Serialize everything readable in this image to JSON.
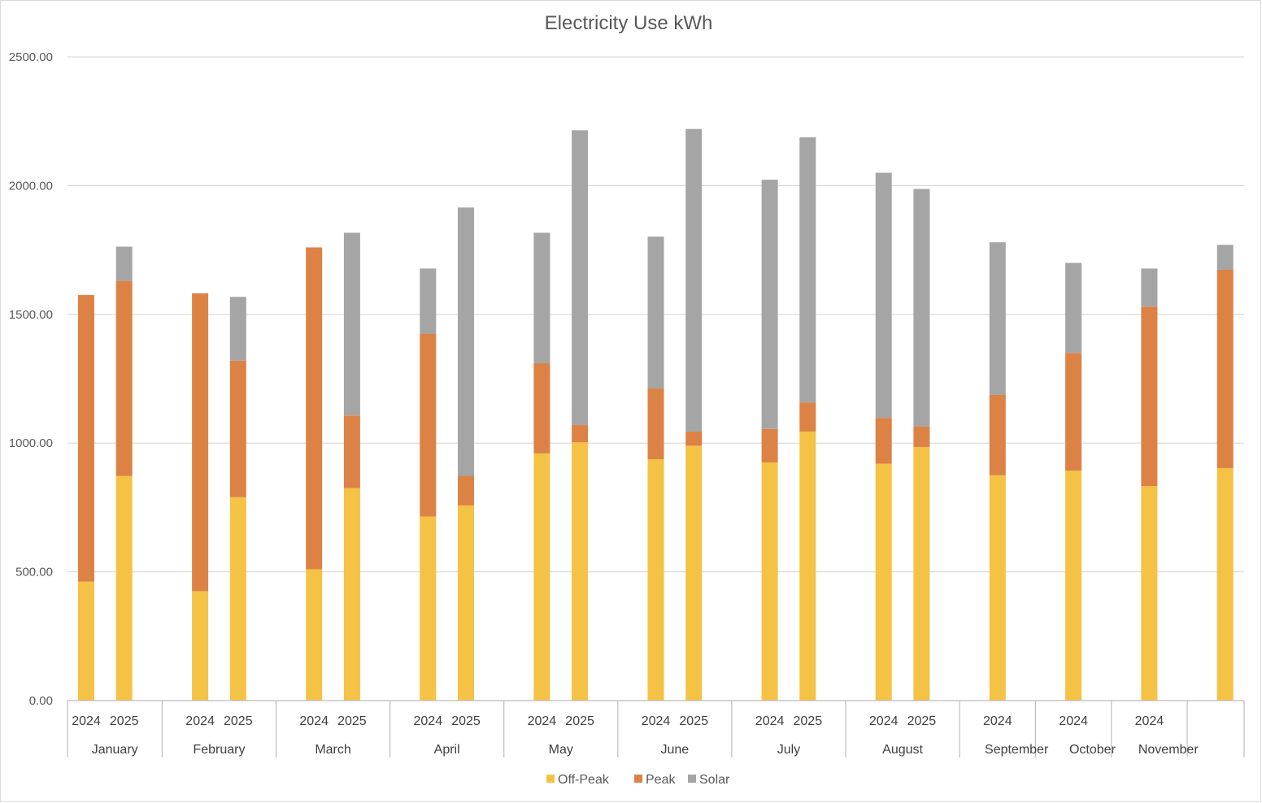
{
  "chart_data": {
    "type": "bar",
    "stacked": true,
    "title": "Electricity Use kWh",
    "xlabel": "",
    "ylabel": "",
    "ylim": [
      0,
      2500
    ],
    "y_ticks": [
      "0.00",
      "500.00",
      "1000.00",
      "1500.00",
      "2000.00",
      "2500.00"
    ],
    "grid": true,
    "legend_position": "bottom",
    "groups": [
      "January",
      "February",
      "March",
      "April",
      "May",
      "June",
      "July",
      "August",
      "September",
      "October",
      "November",
      ""
    ],
    "categories": [
      {
        "group": "January",
        "label": "2024"
      },
      {
        "group": "January",
        "label": "2025"
      },
      {
        "group": "February",
        "label": "2024"
      },
      {
        "group": "February",
        "label": "2025"
      },
      {
        "group": "March",
        "label": "2024"
      },
      {
        "group": "March",
        "label": "2025"
      },
      {
        "group": "April",
        "label": "2024"
      },
      {
        "group": "April",
        "label": "2025"
      },
      {
        "group": "May",
        "label": "2024"
      },
      {
        "group": "May",
        "label": "2025"
      },
      {
        "group": "June",
        "label": "2024"
      },
      {
        "group": "June",
        "label": "2025"
      },
      {
        "group": "July",
        "label": "2024"
      },
      {
        "group": "July",
        "label": "2025"
      },
      {
        "group": "August",
        "label": "2024"
      },
      {
        "group": "August",
        "label": "2025"
      },
      {
        "group": "September",
        "label": "2024"
      },
      {
        "group": "October",
        "label": "2024"
      },
      {
        "group": "November",
        "label": "2024"
      },
      {
        "group": "",
        "label": ""
      }
    ],
    "series": [
      {
        "name": "Off-Peak",
        "color": "#F4C244",
        "values": [
          462,
          872,
          425,
          790,
          510,
          825,
          715,
          758,
          960,
          1003,
          937,
          990,
          925,
          1045,
          920,
          985,
          875,
          893,
          833,
          903
        ]
      },
      {
        "name": "Peak",
        "color": "#DD8245",
        "values": [
          1113,
          758,
          1157,
          530,
          1250,
          282,
          710,
          115,
          350,
          67,
          275,
          55,
          130,
          113,
          178,
          80,
          312,
          457,
          697,
          770
        ]
      },
      {
        "name": "Solar",
        "color": "#A5A5A5",
        "values": [
          0,
          133,
          0,
          248,
          0,
          710,
          253,
          1042,
          507,
          1145,
          590,
          1175,
          968,
          1030,
          952,
          922,
          593,
          350,
          148,
          97
        ]
      }
    ]
  }
}
